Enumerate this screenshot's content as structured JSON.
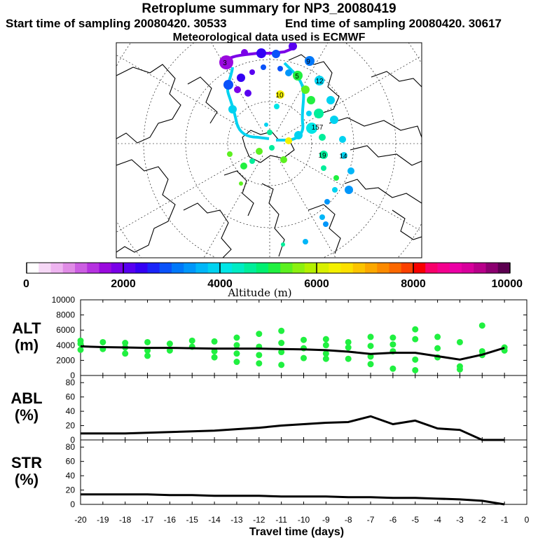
{
  "header": {
    "title": "Retroplume summary for NP3_20080419",
    "start_label": "Start time of sampling 20080420. 30533",
    "end_label": "End time of sampling 20080420. 30617",
    "met_label": "Meteorological data used is ECMWF"
  },
  "colorbar": {
    "ticks": [
      "0",
      "2000",
      "4000",
      "6000",
      "8000",
      "10000"
    ],
    "label": "Altitude (m)",
    "colors": [
      "#ffffff",
      "#f6d8f6",
      "#eeb4f0",
      "#e08ce6",
      "#cc5ee2",
      "#b632e0",
      "#9a0ade",
      "#7a00e8",
      "#5800f0",
      "#3400f4",
      "#1a24f8",
      "#0a52fa",
      "#0078fa",
      "#0096fa",
      "#00b6f8",
      "#00d2f0",
      "#00e6e6",
      "#00ecc4",
      "#00ee9a",
      "#00f070",
      "#20f040",
      "#5cf020",
      "#8cf010",
      "#b4f000",
      "#d8f000",
      "#f4f000",
      "#fce000",
      "#fcc400",
      "#fca800",
      "#fc8a00",
      "#fc6800",
      "#fc4000",
      "#f80000",
      "#f8006a",
      "#f4008e",
      "#ec00a6",
      "#d8009c",
      "#b8008a",
      "#8c0070",
      "#5c0050"
    ]
  },
  "map": {
    "markers": [
      {
        "label": "3",
        "color": "#9a0ade"
      },
      {
        "label": "9",
        "color": "#0a52fa"
      },
      {
        "label": "5",
        "color": "#20f040"
      },
      {
        "label": "10",
        "color": "#f4f000"
      },
      {
        "label": "157",
        "color": "#00e6e6"
      },
      {
        "label": "14",
        "color": "#00d2f0"
      },
      {
        "label": "19",
        "color": "#00d2f0"
      },
      {
        "label": "12",
        "color": "#00d2f0"
      }
    ]
  },
  "chart_data": [
    {
      "type": "line",
      "title": "ALT",
      "ylabel_lines": [
        "ALT",
        "(m)"
      ],
      "x": [
        -20,
        -19,
        -18,
        -17,
        -16,
        -15,
        -14,
        -13,
        -12,
        -11,
        -10,
        -9,
        -8,
        -7,
        -6,
        -5,
        -4,
        -3,
        -2,
        -1
      ],
      "series": [
        {
          "name": "mean altitude",
          "values": [
            3850,
            3750,
            3700,
            3650,
            3650,
            3600,
            3550,
            3550,
            3550,
            3500,
            3450,
            3350,
            3150,
            2850,
            3000,
            3000,
            2550,
            2100,
            2750,
            3650
          ]
        }
      ],
      "scatter_points": [
        [
          -20,
          4600
        ],
        [
          -20,
          4200
        ],
        [
          -20,
          3400
        ],
        [
          -19,
          4400
        ],
        [
          -19,
          3500
        ],
        [
          -18,
          4300
        ],
        [
          -18,
          3700
        ],
        [
          -18,
          2900
        ],
        [
          -17,
          4400
        ],
        [
          -17,
          3300
        ],
        [
          -17,
          2600
        ],
        [
          -16,
          4200
        ],
        [
          -16,
          3300
        ],
        [
          -15,
          4600
        ],
        [
          -15,
          3800
        ],
        [
          -14,
          4500
        ],
        [
          -14,
          3200
        ],
        [
          -14,
          2400
        ],
        [
          -13,
          5000
        ],
        [
          -13,
          4000
        ],
        [
          -13,
          2900
        ],
        [
          -13,
          1800
        ],
        [
          -12,
          5500
        ],
        [
          -12,
          3800
        ],
        [
          -12,
          2700
        ],
        [
          -12,
          1600
        ],
        [
          -11,
          5900
        ],
        [
          -11,
          4300
        ],
        [
          -11,
          3100
        ],
        [
          -11,
          1400
        ],
        [
          -10,
          4700
        ],
        [
          -10,
          3600
        ],
        [
          -10,
          2300
        ],
        [
          -9,
          4800
        ],
        [
          -9,
          4000
        ],
        [
          -9,
          2900
        ],
        [
          -9,
          2200
        ],
        [
          -8,
          4400
        ],
        [
          -8,
          3700
        ],
        [
          -8,
          2200
        ],
        [
          -7,
          5100
        ],
        [
          -7,
          3900
        ],
        [
          -7,
          2500
        ],
        [
          -7,
          1500
        ],
        [
          -6,
          5000
        ],
        [
          -6,
          4100
        ],
        [
          -6,
          3200
        ],
        [
          -6,
          900
        ],
        [
          -5,
          6100
        ],
        [
          -5,
          4800
        ],
        [
          -5,
          2100
        ],
        [
          -5,
          700
        ],
        [
          -4,
          5100
        ],
        [
          -4,
          3600
        ],
        [
          -4,
          2400
        ],
        [
          -3,
          4400
        ],
        [
          -3,
          1200
        ],
        [
          -3,
          800
        ],
        [
          -2,
          3200
        ],
        [
          -2,
          2700
        ],
        [
          -2,
          6600
        ],
        [
          -1,
          3700
        ],
        [
          -1,
          3300
        ]
      ],
      "xlim": [
        -20,
        0
      ],
      "ylim": [
        0,
        10000
      ],
      "yticks": [
        "0",
        "2000",
        "4000",
        "6000",
        "8000",
        "10000"
      ]
    },
    {
      "type": "line",
      "title": "ABL",
      "ylabel_lines": [
        "ABL",
        "(%)"
      ],
      "x": [
        -20,
        -19,
        -18,
        -17,
        -16,
        -15,
        -14,
        -13,
        -12,
        -11,
        -10,
        -9,
        -8,
        -7,
        -6,
        -5,
        -4,
        -3,
        -2,
        -1
      ],
      "series": [
        {
          "name": "ABL fraction",
          "values": [
            9,
            9,
            9,
            10,
            11,
            12,
            13,
            15,
            17,
            20,
            22,
            24,
            25,
            33,
            22,
            27,
            16,
            14,
            0,
            0
          ]
        }
      ],
      "xlim": [
        -20,
        0
      ],
      "ylim": [
        0,
        90
      ],
      "yticks": [
        "0",
        "20",
        "40",
        "60",
        "80"
      ]
    },
    {
      "type": "line",
      "title": "STR",
      "ylabel_lines": [
        "STR",
        "(%)"
      ],
      "x": [
        -20,
        -19,
        -18,
        -17,
        -16,
        -15,
        -14,
        -13,
        -12,
        -11,
        -10,
        -9,
        -8,
        -7,
        -6,
        -5,
        -4,
        -3,
        -2,
        -1
      ],
      "series": [
        {
          "name": "stratospheric fraction",
          "values": [
            14,
            14,
            14,
            14,
            13,
            13,
            12,
            12,
            12,
            11,
            11,
            11,
            10,
            10,
            9,
            9,
            8,
            7,
            5,
            0
          ]
        }
      ],
      "xlim": [
        -20,
        0
      ],
      "ylim": [
        0,
        90
      ],
      "yticks": [
        "0",
        "20",
        "40",
        "60",
        "80"
      ],
      "xlabel": "Travel time (days)",
      "xticks": [
        "-20",
        "-19",
        "-18",
        "-17",
        "-16",
        "-15",
        "-14",
        "-13",
        "-12",
        "-11",
        "-10",
        "-9",
        "-8",
        "-7",
        "-6",
        "-5",
        "-4",
        "-3",
        "-2",
        "-1",
        "0"
      ]
    }
  ]
}
